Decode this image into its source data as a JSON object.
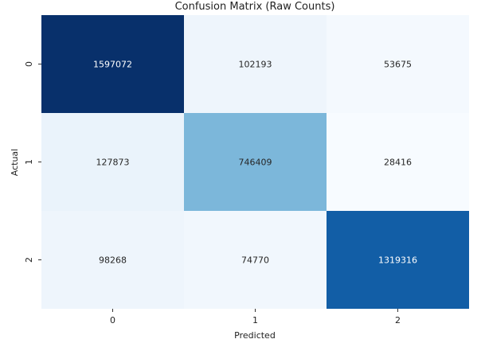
{
  "chart_data": {
    "type": "heatmap",
    "title": "Confusion Matrix (Raw Counts)",
    "xlabel": "Predicted",
    "ylabel": "Actual",
    "x_categories": [
      "0",
      "1",
      "2"
    ],
    "y_categories": [
      "0",
      "1",
      "2"
    ],
    "values": [
      [
        1597072,
        102193,
        53675
      ],
      [
        127873,
        746409,
        28416
      ],
      [
        98268,
        74770,
        1319316
      ]
    ],
    "colormap": "Blues",
    "color_min": 28416,
    "color_max": 1597072,
    "colorbar": false,
    "grid": false
  }
}
